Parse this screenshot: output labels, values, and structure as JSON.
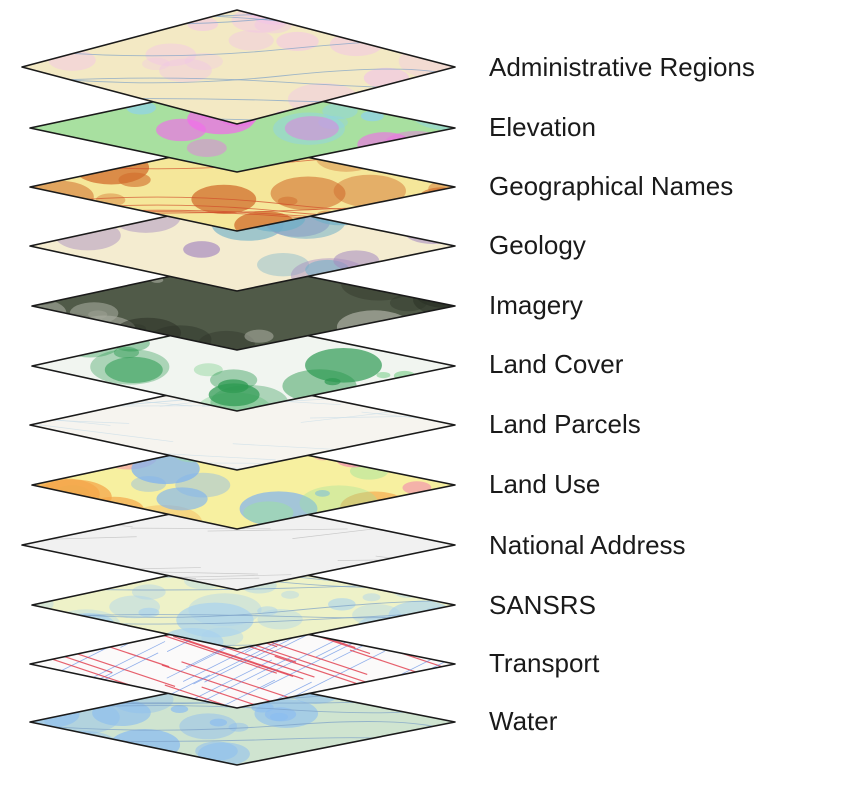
{
  "layers": [
    {
      "label": "Administrative Regions",
      "theme": "admin",
      "base": "#f3e9c4",
      "accent": "#f2c6e6"
    },
    {
      "label": "Elevation",
      "theme": "elevation",
      "base": "#a8e0a0",
      "accent": "#f06ee8"
    },
    {
      "label": "Geographical Names",
      "theme": "names",
      "base": "#f5e79a",
      "accent": "#d06a2a"
    },
    {
      "label": "Geology",
      "theme": "geology",
      "base": "#f4ecd0",
      "accent": "#a58ac0"
    },
    {
      "label": "Imagery",
      "theme": "imagery",
      "base": "#505a48",
      "accent": "#a9aca0"
    },
    {
      "label": "Land Cover",
      "theme": "landcover",
      "base": "#f1f5f0",
      "accent": "#2e9a52"
    },
    {
      "label": "Land Parcels",
      "theme": "parcels",
      "base": "#f6f4ef",
      "accent": "#c9dde8"
    },
    {
      "label": "Land Use",
      "theme": "landuse",
      "base": "#f7f0a0",
      "accent": "#7fb3f0"
    },
    {
      "label": "National Address",
      "theme": "address",
      "base": "#f1f1f1",
      "accent": "#b8b8b8"
    },
    {
      "label": "SANSRS",
      "theme": "sansrs",
      "base": "#eef2c8",
      "accent": "#a9d2ee"
    },
    {
      "label": "Transport",
      "theme": "transport",
      "base": "#fbfafa",
      "accent": "#e23a4a"
    },
    {
      "label": "Water",
      "theme": "water",
      "base": "#cfe4d0",
      "accent": "#8cbdf0"
    }
  ]
}
